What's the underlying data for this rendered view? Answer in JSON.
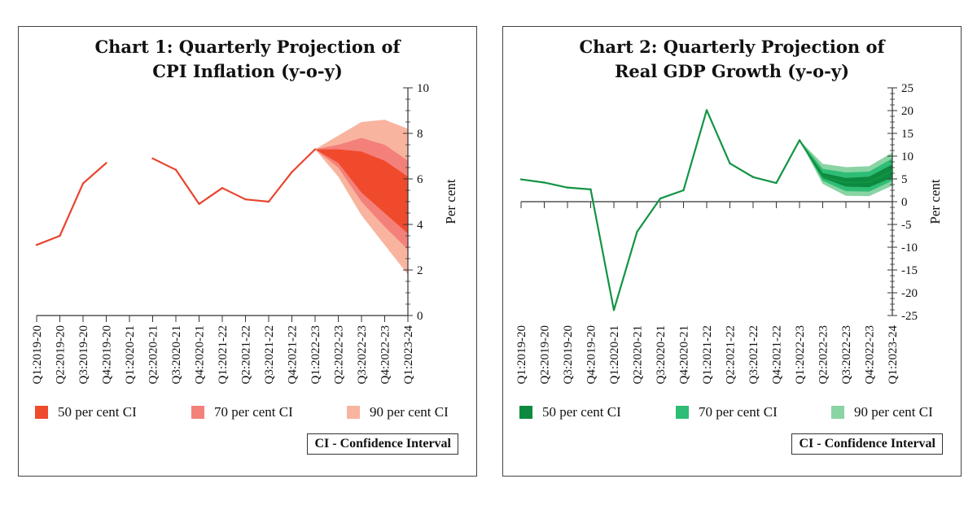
{
  "chart_data": [
    {
      "type": "line",
      "title_line1": "Chart 1: Quarterly Projection of",
      "title_line2": "CPI Inflation (y-o-y)",
      "ylabel": "Per cent",
      "ylim": [
        0,
        10
      ],
      "yticks": [
        "0",
        "2",
        "4",
        "6",
        "8",
        "10"
      ],
      "categories": [
        "Q1:2019-20",
        "Q2:2019-20",
        "Q3:2019-20",
        "Q4:2019-20",
        "Q1:2020-21",
        "Q2:2020-21",
        "Q3:2020-21",
        "Q4:2020-21",
        "Q1:2021-22",
        "Q2:2021-22",
        "Q3:2021-22",
        "Q4:2021-22",
        "Q1:2022-23",
        "Q2:2022-23",
        "Q3:2022-23",
        "Q4:2022-23",
        "Q1:2023-24"
      ],
      "series": [
        {
          "values": [
            3.1,
            3.5,
            5.8,
            6.7,
            null,
            6.9,
            6.4,
            4.9,
            5.6,
            5.1,
            5.0,
            6.3,
            7.3,
            null,
            null,
            null,
            null
          ]
        }
      ],
      "fan": {
        "x": [
          12,
          13,
          14,
          15,
          16
        ],
        "ci90": {
          "upper": [
            7.3,
            7.9,
            8.5,
            8.6,
            8.2
          ],
          "lower": [
            7.3,
            6.1,
            4.4,
            3.1,
            1.8
          ]
        },
        "ci70": {
          "upper": [
            7.3,
            7.5,
            7.8,
            7.5,
            6.8
          ],
          "lower": [
            7.3,
            6.5,
            5.0,
            3.9,
            2.9
          ]
        },
        "ci50": {
          "upper": [
            7.3,
            7.3,
            7.2,
            6.8,
            6.1
          ],
          "lower": [
            7.3,
            6.7,
            5.4,
            4.5,
            3.6
          ]
        }
      },
      "colors": {
        "line": "#e8452e",
        "ci50": "#f04a2d",
        "ci70": "#f4807a",
        "ci90": "#f8b49e"
      },
      "legend": [
        "50 per cent CI",
        "70 per cent CI",
        "90 per cent CI"
      ],
      "note": "CI - Confidence Interval"
    },
    {
      "type": "line",
      "title_line1": "Chart 2: Quarterly Projection of",
      "title_line2": "Real GDP Growth (y-o-y)",
      "ylabel": "Per cent",
      "ylim": [
        -25,
        25
      ],
      "yticks": [
        "-25",
        "-20",
        "-15",
        "-10",
        "-5",
        "0",
        "5",
        "10",
        "15",
        "20",
        "25"
      ],
      "categories": [
        "Q1:2019-20",
        "Q2:2019-20",
        "Q3:2019-20",
        "Q4:2019-20",
        "Q1:2020-21",
        "Q2:2020-21",
        "Q3:2020-21",
        "Q4:2020-21",
        "Q1:2021-22",
        "Q2:2021-22",
        "Q3:2021-22",
        "Q4:2021-22",
        "Q1:2022-23",
        "Q2:2022-23",
        "Q3:2022-23",
        "Q4:2022-23",
        "Q1:2023-24"
      ],
      "series": [
        {
          "values": [
            4.9,
            4.2,
            3.1,
            2.7,
            -23.8,
            -6.6,
            0.7,
            2.5,
            20.1,
            8.4,
            5.4,
            4.1,
            13.5,
            5.5,
            4.2,
            4.3,
            6.7
          ]
        }
      ],
      "fan": {
        "x": [
          12,
          13,
          14,
          15,
          16
        ],
        "ci90": {
          "upper": [
            13.5,
            8.3,
            7.6,
            7.8,
            10.8
          ],
          "lower": [
            13.5,
            3.9,
            1.3,
            1.2,
            3.5
          ]
        },
        "ci70": {
          "upper": [
            13.5,
            7.2,
            6.4,
            6.6,
            9.5
          ],
          "lower": [
            13.5,
            4.6,
            2.3,
            2.2,
            4.6
          ]
        },
        "ci50": {
          "upper": [
            13.5,
            6.3,
            5.2,
            5.5,
            8.2
          ],
          "lower": [
            13.5,
            5.2,
            3.3,
            3.2,
            5.3
          ]
        }
      },
      "colors": {
        "line": "#129444",
        "ci50": "#0d8a3f",
        "ci70": "#2ebd74",
        "ci90": "#8ad4a4"
      },
      "legend": [
        "50 per cent CI",
        "70 per cent CI",
        "90 per cent CI"
      ],
      "note": "CI - Confidence Interval"
    }
  ]
}
